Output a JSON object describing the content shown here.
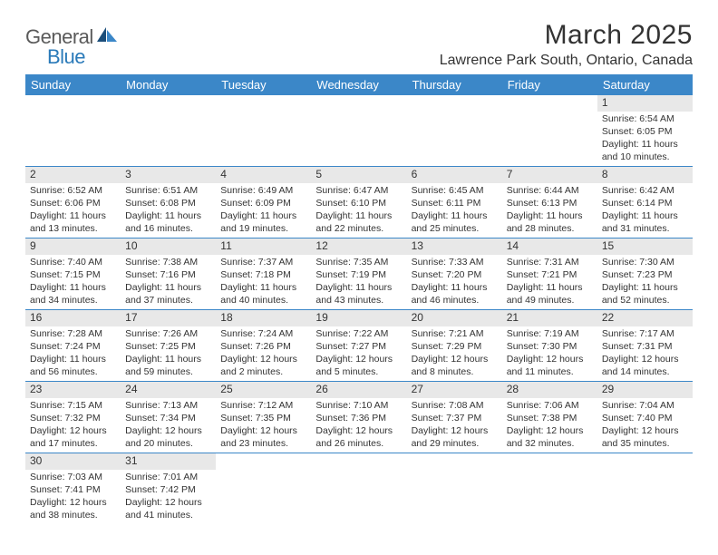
{
  "logo": {
    "text1": "General",
    "text2": "Blue"
  },
  "title": "March 2025",
  "location": "Lawrence Park South, Ontario, Canada",
  "colors": {
    "header_bg": "#3b87c8",
    "header_fg": "#ffffff",
    "daynum_bg": "#e8e8e8",
    "border": "#3b87c8"
  },
  "weekdays": [
    "Sunday",
    "Monday",
    "Tuesday",
    "Wednesday",
    "Thursday",
    "Friday",
    "Saturday"
  ],
  "weeks": [
    [
      null,
      null,
      null,
      null,
      null,
      null,
      {
        "n": "1",
        "sr": "6:54 AM",
        "ss": "6:05 PM",
        "dl": "11 hours and 10 minutes."
      }
    ],
    [
      {
        "n": "2",
        "sr": "6:52 AM",
        "ss": "6:06 PM",
        "dl": "11 hours and 13 minutes."
      },
      {
        "n": "3",
        "sr": "6:51 AM",
        "ss": "6:08 PM",
        "dl": "11 hours and 16 minutes."
      },
      {
        "n": "4",
        "sr": "6:49 AM",
        "ss": "6:09 PM",
        "dl": "11 hours and 19 minutes."
      },
      {
        "n": "5",
        "sr": "6:47 AM",
        "ss": "6:10 PM",
        "dl": "11 hours and 22 minutes."
      },
      {
        "n": "6",
        "sr": "6:45 AM",
        "ss": "6:11 PM",
        "dl": "11 hours and 25 minutes."
      },
      {
        "n": "7",
        "sr": "6:44 AM",
        "ss": "6:13 PM",
        "dl": "11 hours and 28 minutes."
      },
      {
        "n": "8",
        "sr": "6:42 AM",
        "ss": "6:14 PM",
        "dl": "11 hours and 31 minutes."
      }
    ],
    [
      {
        "n": "9",
        "sr": "7:40 AM",
        "ss": "7:15 PM",
        "dl": "11 hours and 34 minutes."
      },
      {
        "n": "10",
        "sr": "7:38 AM",
        "ss": "7:16 PM",
        "dl": "11 hours and 37 minutes."
      },
      {
        "n": "11",
        "sr": "7:37 AM",
        "ss": "7:18 PM",
        "dl": "11 hours and 40 minutes."
      },
      {
        "n": "12",
        "sr": "7:35 AM",
        "ss": "7:19 PM",
        "dl": "11 hours and 43 minutes."
      },
      {
        "n": "13",
        "sr": "7:33 AM",
        "ss": "7:20 PM",
        "dl": "11 hours and 46 minutes."
      },
      {
        "n": "14",
        "sr": "7:31 AM",
        "ss": "7:21 PM",
        "dl": "11 hours and 49 minutes."
      },
      {
        "n": "15",
        "sr": "7:30 AM",
        "ss": "7:23 PM",
        "dl": "11 hours and 52 minutes."
      }
    ],
    [
      {
        "n": "16",
        "sr": "7:28 AM",
        "ss": "7:24 PM",
        "dl": "11 hours and 56 minutes."
      },
      {
        "n": "17",
        "sr": "7:26 AM",
        "ss": "7:25 PM",
        "dl": "11 hours and 59 minutes."
      },
      {
        "n": "18",
        "sr": "7:24 AM",
        "ss": "7:26 PM",
        "dl": "12 hours and 2 minutes."
      },
      {
        "n": "19",
        "sr": "7:22 AM",
        "ss": "7:27 PM",
        "dl": "12 hours and 5 minutes."
      },
      {
        "n": "20",
        "sr": "7:21 AM",
        "ss": "7:29 PM",
        "dl": "12 hours and 8 minutes."
      },
      {
        "n": "21",
        "sr": "7:19 AM",
        "ss": "7:30 PM",
        "dl": "12 hours and 11 minutes."
      },
      {
        "n": "22",
        "sr": "7:17 AM",
        "ss": "7:31 PM",
        "dl": "12 hours and 14 minutes."
      }
    ],
    [
      {
        "n": "23",
        "sr": "7:15 AM",
        "ss": "7:32 PM",
        "dl": "12 hours and 17 minutes."
      },
      {
        "n": "24",
        "sr": "7:13 AM",
        "ss": "7:34 PM",
        "dl": "12 hours and 20 minutes."
      },
      {
        "n": "25",
        "sr": "7:12 AM",
        "ss": "7:35 PM",
        "dl": "12 hours and 23 minutes."
      },
      {
        "n": "26",
        "sr": "7:10 AM",
        "ss": "7:36 PM",
        "dl": "12 hours and 26 minutes."
      },
      {
        "n": "27",
        "sr": "7:08 AM",
        "ss": "7:37 PM",
        "dl": "12 hours and 29 minutes."
      },
      {
        "n": "28",
        "sr": "7:06 AM",
        "ss": "7:38 PM",
        "dl": "12 hours and 32 minutes."
      },
      {
        "n": "29",
        "sr": "7:04 AM",
        "ss": "7:40 PM",
        "dl": "12 hours and 35 minutes."
      }
    ],
    [
      {
        "n": "30",
        "sr": "7:03 AM",
        "ss": "7:41 PM",
        "dl": "12 hours and 38 minutes."
      },
      {
        "n": "31",
        "sr": "7:01 AM",
        "ss": "7:42 PM",
        "dl": "12 hours and 41 minutes."
      },
      null,
      null,
      null,
      null,
      null
    ]
  ],
  "labels": {
    "sunrise": "Sunrise:",
    "sunset": "Sunset:",
    "daylight": "Daylight:"
  }
}
